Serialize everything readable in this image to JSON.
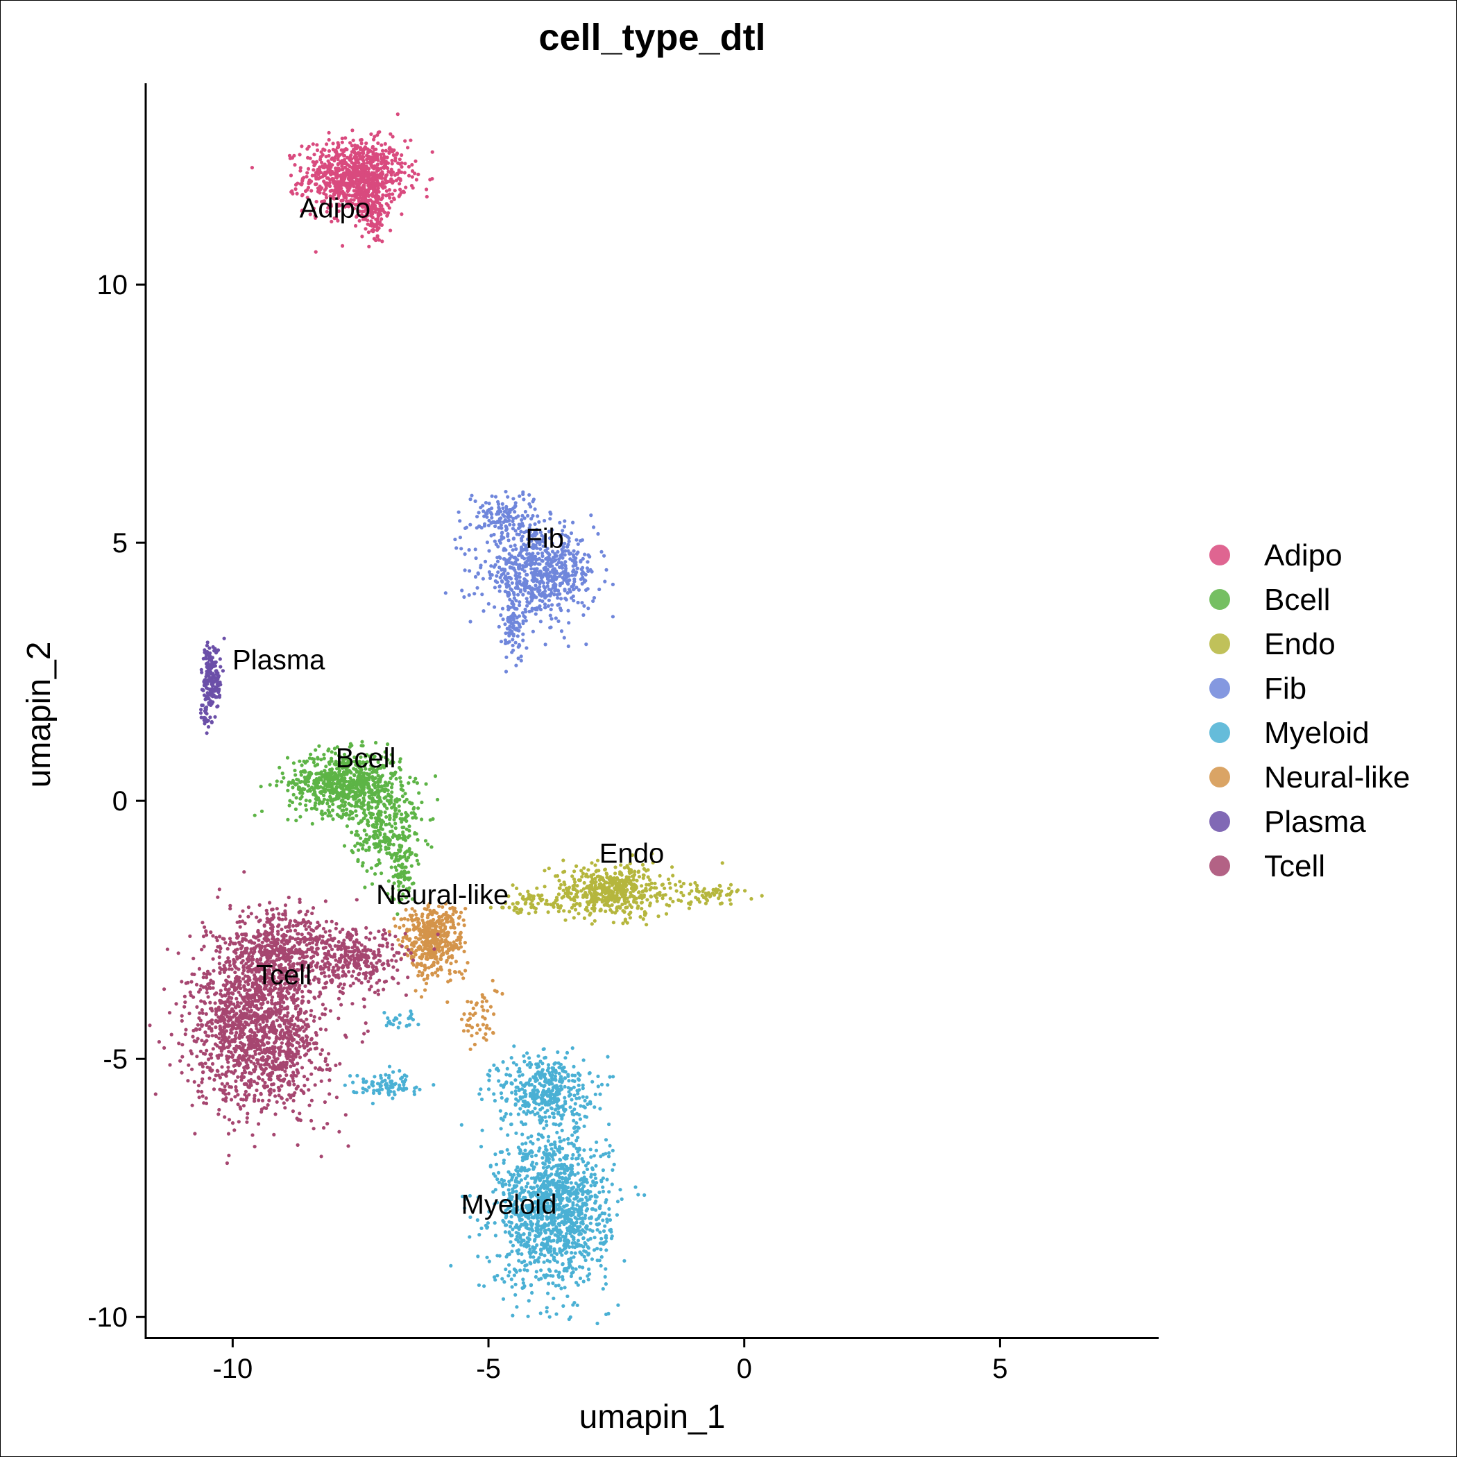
{
  "chart_data": {
    "type": "scatter",
    "title": "cell_type_dtl",
    "xlabel": "umapin_1",
    "ylabel": "umapin_2",
    "xlim": [
      -11.7,
      8.1
    ],
    "ylim": [
      -10.4,
      13.9
    ],
    "xticks": [
      -10,
      -5,
      0,
      5
    ],
    "yticks": [
      -10,
      -5,
      0,
      5,
      10
    ],
    "grid": false,
    "legend_position": "right",
    "series": [
      {
        "name": "Adipo",
        "color": "#D94A7E",
        "clusters": [
          {
            "cx": -7.6,
            "cy": 12.1,
            "sx": 0.5,
            "sy": 0.35,
            "n": 900
          },
          {
            "cx": -7.25,
            "cy": 11.4,
            "sx": 0.12,
            "sy": 0.3,
            "n": 120
          }
        ],
        "label": {
          "text": "Adipo",
          "x": -8.0,
          "y": 11.3
        }
      },
      {
        "name": "Bcell",
        "color": "#5DB446",
        "clusters": [
          {
            "cx": -7.8,
            "cy": 0.35,
            "sx": 0.55,
            "sy": 0.3,
            "n": 700
          },
          {
            "cx": -7.0,
            "cy": -0.5,
            "sx": 0.35,
            "sy": 0.45,
            "n": 300
          },
          {
            "cx": -6.7,
            "cy": -1.4,
            "sx": 0.12,
            "sy": 0.3,
            "n": 70
          }
        ],
        "label": {
          "text": "Bcell",
          "x": -7.4,
          "y": 0.65
        }
      },
      {
        "name": "Endo",
        "color": "#B5B63D",
        "clusters": [
          {
            "cx": -2.6,
            "cy": -1.75,
            "sx": 0.6,
            "sy": 0.25,
            "n": 500
          },
          {
            "cx": -0.6,
            "cy": -1.8,
            "sx": 0.45,
            "sy": 0.1,
            "n": 60
          },
          {
            "cx": -4.2,
            "cy": -2.0,
            "sx": 0.5,
            "sy": 0.12,
            "n": 60
          }
        ],
        "label": {
          "text": "Endo",
          "x": -2.2,
          "y": -1.2
        }
      },
      {
        "name": "Fib",
        "color": "#6F86DB",
        "clusters": [
          {
            "cx": -4.0,
            "cy": 4.4,
            "sx": 0.55,
            "sy": 0.4,
            "n": 650
          },
          {
            "cx": -4.7,
            "cy": 5.5,
            "sx": 0.35,
            "sy": 0.25,
            "n": 150
          },
          {
            "cx": -4.5,
            "cy": 3.3,
            "sx": 0.12,
            "sy": 0.3,
            "n": 80
          }
        ],
        "label": {
          "text": "Fib",
          "x": -3.9,
          "y": 4.9
        }
      },
      {
        "name": "Myeloid",
        "color": "#4AB0D4",
        "clusters": [
          {
            "cx": -3.75,
            "cy": -7.9,
            "sx": 0.55,
            "sy": 0.75,
            "n": 1300
          },
          {
            "cx": -3.9,
            "cy": -5.6,
            "sx": 0.45,
            "sy": 0.35,
            "n": 400
          },
          {
            "cx": -7.0,
            "cy": -5.5,
            "sx": 0.35,
            "sy": 0.12,
            "n": 90
          },
          {
            "cx": -6.8,
            "cy": -4.2,
            "sx": 0.2,
            "sy": 0.1,
            "n": 25
          }
        ],
        "label": {
          "text": "Myeloid",
          "x": -4.6,
          "y": -8.0
        }
      },
      {
        "name": "Neural-like",
        "color": "#D4944A",
        "clusters": [
          {
            "cx": -6.1,
            "cy": -2.7,
            "sx": 0.3,
            "sy": 0.35,
            "n": 450
          },
          {
            "cx": -5.2,
            "cy": -4.2,
            "sx": 0.2,
            "sy": 0.3,
            "n": 50
          }
        ],
        "label": {
          "text": "Neural-like",
          "x": -5.9,
          "y": -2.0
        }
      },
      {
        "name": "Plasma",
        "color": "#6B4FA8",
        "clusters": [
          {
            "cx": -10.4,
            "cy": 2.4,
            "sx": 0.1,
            "sy": 0.35,
            "n": 160
          },
          {
            "cx": -10.5,
            "cy": 1.7,
            "sx": 0.06,
            "sy": 0.2,
            "n": 30
          }
        ],
        "label": {
          "text": "Plasma",
          "x": -9.1,
          "y": 2.55
        }
      },
      {
        "name": "Tcell",
        "color": "#A64670",
        "clusters": [
          {
            "cx": -9.5,
            "cy": -4.4,
            "sx": 0.65,
            "sy": 0.8,
            "n": 1500
          },
          {
            "cx": -9.1,
            "cy": -2.9,
            "sx": 0.55,
            "sy": 0.4,
            "n": 500
          },
          {
            "cx": -7.6,
            "cy": -3.1,
            "sx": 0.5,
            "sy": 0.3,
            "n": 300
          }
        ],
        "label": {
          "text": "Tcell",
          "x": -9.0,
          "y": -3.55
        }
      }
    ]
  }
}
